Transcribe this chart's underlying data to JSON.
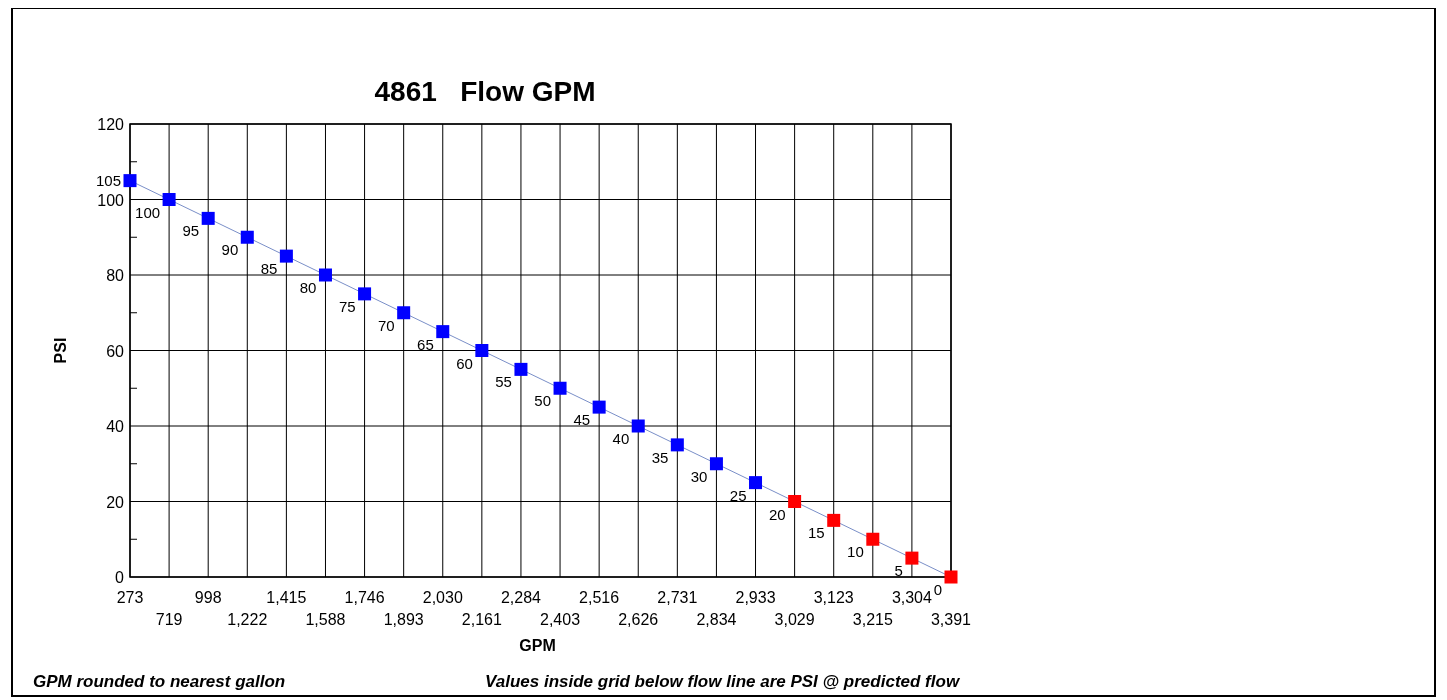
{
  "chart_data": {
    "type": "line",
    "title": "4861   Flow GPM",
    "xlabel": "GPM",
    "ylabel": "PSI",
    "categories": [
      "273",
      "719",
      "998",
      "1,222",
      "1,415",
      "1,588",
      "1,746",
      "1,893",
      "2,030",
      "2,161",
      "2,284",
      "2,403",
      "2,516",
      "2,626",
      "2,731",
      "2,834",
      "2,933",
      "3,029",
      "3,123",
      "3,215",
      "3,304",
      "3,391"
    ],
    "values": [
      105,
      100,
      95,
      90,
      85,
      80,
      75,
      70,
      65,
      60,
      55,
      50,
      45,
      40,
      35,
      30,
      25,
      20,
      15,
      10,
      5,
      0
    ],
    "color": "#7a8fc8",
    "colors": [
      "#0000ff",
      "#0000ff",
      "#0000ff",
      "#0000ff",
      "#0000ff",
      "#0000ff",
      "#0000ff",
      "#0000ff",
      "#0000ff",
      "#0000ff",
      "#0000ff",
      "#0000ff",
      "#0000ff",
      "#0000ff",
      "#0000ff",
      "#0000ff",
      "#0000ff",
      "#ff0000",
      "#ff0000",
      "#ff0000",
      "#ff0000",
      "#ff0000"
    ],
    "marker": "square",
    "data_labels": true,
    "grid": true,
    "ylim": [
      0,
      120
    ],
    "yticks": [
      0,
      {
        "value": 10,
        "label": null
      },
      20,
      {
        "value": 30,
        "label": null
      },
      40,
      {
        "value": 50,
        "label": null
      },
      60,
      {
        "value": 70,
        "label": null
      },
      80,
      {
        "value": 90,
        "label": null
      },
      100,
      {
        "value": 110,
        "label": null
      },
      120
    ],
    "annotations": [
      "GPM rounded to nearest gallon",
      "Values inside grid below flow line are PSI @ predicted flow"
    ]
  }
}
